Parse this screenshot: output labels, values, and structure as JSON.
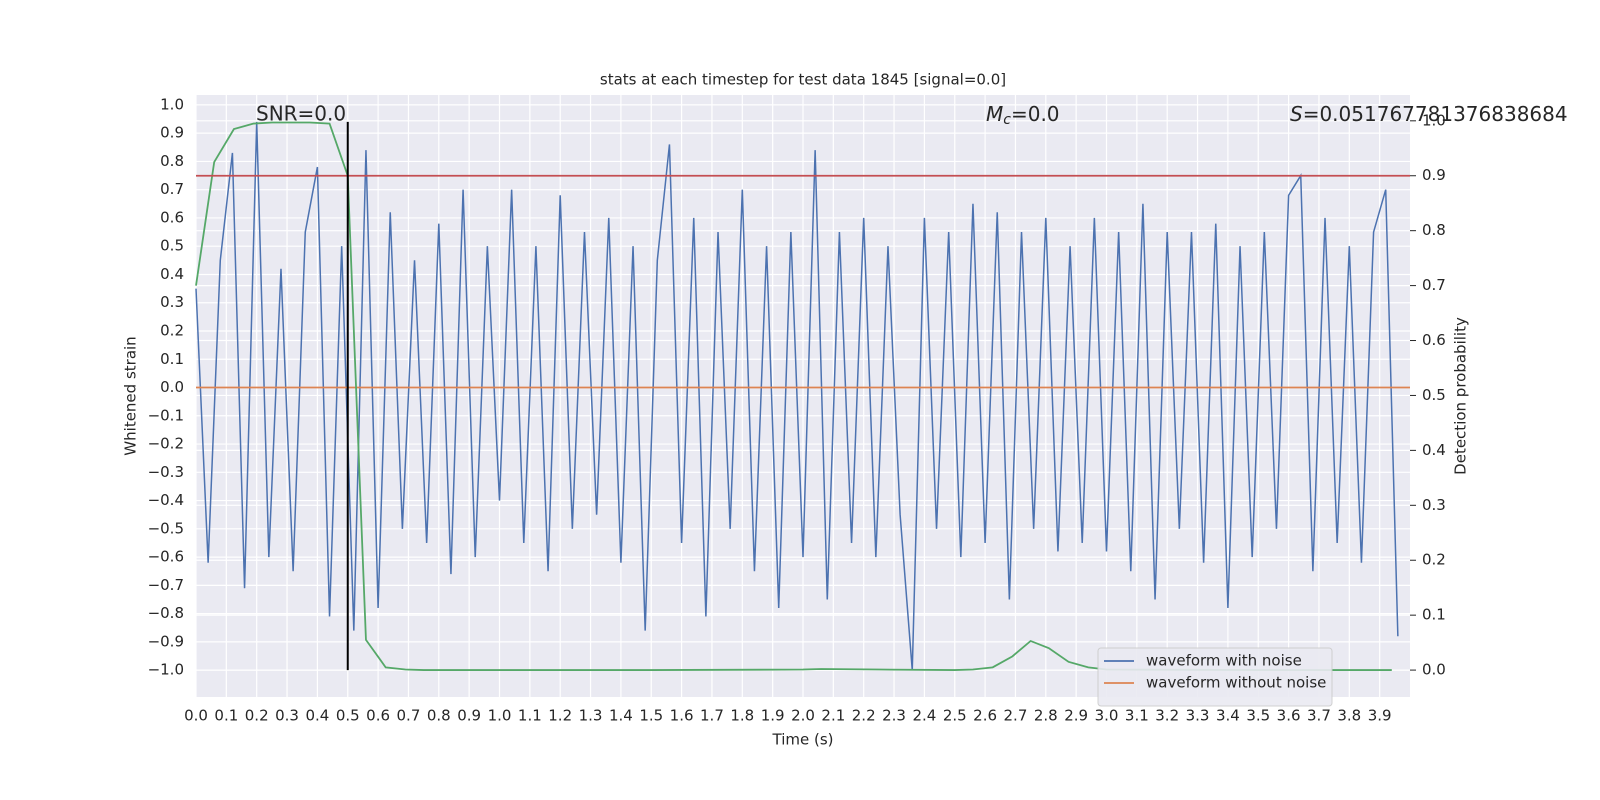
{
  "chart_data": {
    "type": "line",
    "title": "stats at each timestep for test data 1845 [signal=0.0]",
    "xlabel": "Time (s)",
    "ylabel": "Whitened strain",
    "y2label": "Detection probability",
    "annotations": [
      {
        "text": "SNR=0.0"
      },
      {
        "parts": [
          "M",
          "c",
          "=0.0"
        ]
      },
      {
        "parts": [
          "S",
          "",
          "=0.051767781376838684"
        ]
      }
    ],
    "xlim": [
      0,
      4.0
    ],
    "ylim": [
      -1.095,
      1.035
    ],
    "y2lim": [
      -0.049,
      1.047
    ],
    "xticks": [
      {
        "value": 0,
        "label": "0.0"
      },
      0.1,
      0.2,
      0.3,
      0.4,
      0.5,
      0.6,
      0.7,
      0.8,
      0.9,
      {
        "value": 1,
        "label": "1.0"
      },
      1.1,
      1.2,
      1.3,
      1.4,
      1.5,
      1.6,
      1.7,
      1.8,
      1.9,
      {
        "value": 2,
        "label": "2.0"
      },
      2.1,
      2.2,
      2.3,
      2.4,
      2.5,
      2.6,
      2.7,
      2.8,
      2.9,
      {
        "value": 3,
        "label": "3.0"
      },
      3.1,
      3.2,
      3.3,
      3.4,
      3.5,
      3.6,
      3.7,
      3.8,
      3.9
    ],
    "yticks": [
      {
        "value": -1,
        "label": "−1.0"
      },
      {
        "value": -0.9,
        "label": "−0.9"
      },
      {
        "value": -0.8,
        "label": "−0.8"
      },
      {
        "value": -0.7,
        "label": "−0.7"
      },
      {
        "value": -0.6,
        "label": "−0.6"
      },
      {
        "value": -0.5,
        "label": "−0.5"
      },
      {
        "value": -0.4,
        "label": "−0.4"
      },
      {
        "value": -0.3,
        "label": "−0.3"
      },
      {
        "value": -0.2,
        "label": "−0.2"
      },
      {
        "value": -0.1,
        "label": "−0.1"
      },
      {
        "value": 0,
        "label": "0.0"
      },
      0.1,
      0.2,
      0.3,
      0.4,
      0.5,
      0.6,
      0.7,
      0.8,
      0.9,
      {
        "value": 1,
        "label": "1.0"
      }
    ],
    "y2ticks": [
      {
        "value": 0,
        "label": "0.0"
      },
      0.1,
      0.2,
      0.3,
      0.4,
      0.5,
      0.6,
      0.7,
      0.8,
      0.9,
      {
        "value": 1,
        "label": "1.0"
      }
    ],
    "grid": true,
    "legend": "lower right",
    "vline": {
      "x": 0.5,
      "ymin": -1.0,
      "ymax": 0.94,
      "color": "#000000"
    },
    "series": [
      {
        "name": "waveform with noise",
        "color": "#4c72b0",
        "x": [
          0,
          0.04,
          0.08,
          0.12,
          0.16,
          0.2,
          0.24,
          0.28,
          0.32,
          0.36,
          0.4,
          0.44,
          0.48,
          0.52,
          0.56,
          0.6,
          0.64,
          0.68,
          0.72,
          0.76,
          0.8,
          0.84,
          0.88,
          0.92,
          0.96,
          1.0,
          1.04,
          1.08,
          1.12,
          1.16,
          1.2,
          1.24,
          1.28,
          1.32,
          1.36,
          1.4,
          1.44,
          1.48,
          1.52,
          1.56,
          1.6,
          1.64,
          1.68,
          1.72,
          1.76,
          1.8,
          1.84,
          1.88,
          1.92,
          1.96,
          2.0,
          2.04,
          2.08,
          2.12,
          2.16,
          2.2,
          2.24,
          2.28,
          2.32,
          2.36,
          2.4,
          2.44,
          2.48,
          2.52,
          2.56,
          2.6,
          2.64,
          2.68,
          2.72,
          2.76,
          2.8,
          2.84,
          2.88,
          2.92,
          2.96,
          3.0,
          3.04,
          3.08,
          3.12,
          3.16,
          3.2,
          3.24,
          3.28,
          3.32,
          3.36,
          3.4,
          3.44,
          3.48,
          3.52,
          3.56,
          3.6,
          3.64,
          3.68,
          3.72,
          3.76,
          3.8,
          3.84,
          3.88,
          3.92,
          3.96
        ],
        "values": [
          0.35,
          -0.62,
          0.45,
          0.83,
          -0.71,
          0.94,
          -0.6,
          0.42,
          -0.65,
          0.55,
          0.78,
          -0.81,
          0.5,
          -0.86,
          0.84,
          -0.78,
          0.62,
          -0.5,
          0.45,
          -0.55,
          0.58,
          -0.66,
          0.7,
          -0.6,
          0.5,
          -0.4,
          0.7,
          -0.55,
          0.5,
          -0.65,
          0.68,
          -0.5,
          0.55,
          -0.45,
          0.6,
          -0.62,
          0.5,
          -0.86,
          0.45,
          0.86,
          -0.55,
          0.6,
          -0.81,
          0.55,
          -0.5,
          0.7,
          -0.65,
          0.5,
          -0.78,
          0.55,
          -0.6,
          0.84,
          -0.75,
          0.55,
          -0.55,
          0.6,
          -0.6,
          0.5,
          -0.45,
          -1.0,
          0.6,
          -0.5,
          0.55,
          -0.6,
          0.65,
          -0.55,
          0.62,
          -0.75,
          0.55,
          -0.5,
          0.6,
          -0.58,
          0.5,
          -0.55,
          0.6,
          -0.58,
          0.55,
          -0.65,
          0.65,
          -0.75,
          0.55,
          -0.5,
          0.55,
          -0.62,
          0.58,
          -0.78,
          0.5,
          -0.6,
          0.55,
          -0.5,
          0.68,
          0.75,
          -0.65,
          0.6,
          -0.55,
          0.5,
          -0.62,
          0.55,
          0.7,
          -0.88
        ]
      },
      {
        "name": "waveform without noise",
        "color": "#dd8452",
        "x": [
          0,
          4.0
        ],
        "values": [
          0,
          0
        ]
      },
      {
        "color": "#55a868",
        "axis": "y2",
        "x": [
          0,
          0.06,
          0.125,
          0.19,
          0.25,
          0.31,
          0.375,
          0.44,
          0.5,
          0.56,
          0.625,
          0.69,
          0.75,
          1.0,
          1.5,
          2.0,
          2.06,
          2.25,
          2.5,
          2.56,
          2.625,
          2.69,
          2.75,
          2.81,
          2.875,
          2.94,
          3.0,
          3.5,
          3.94
        ],
        "values": [
          0.7,
          0.925,
          0.985,
          0.995,
          0.997,
          0.997,
          0.997,
          0.995,
          0.9,
          0.055,
          0.005,
          0.001,
          0.0,
          0.0,
          0.0,
          0.001,
          0.002,
          0.001,
          0.0,
          0.001,
          0.005,
          0.025,
          0.053,
          0.04,
          0.015,
          0.005,
          0.001,
          0.0,
          0.0
        ]
      },
      {
        "color": "#c44e52",
        "axis": "y2",
        "x": [
          0,
          4.0
        ],
        "values": [
          0.9,
          0.9
        ]
      }
    ]
  }
}
